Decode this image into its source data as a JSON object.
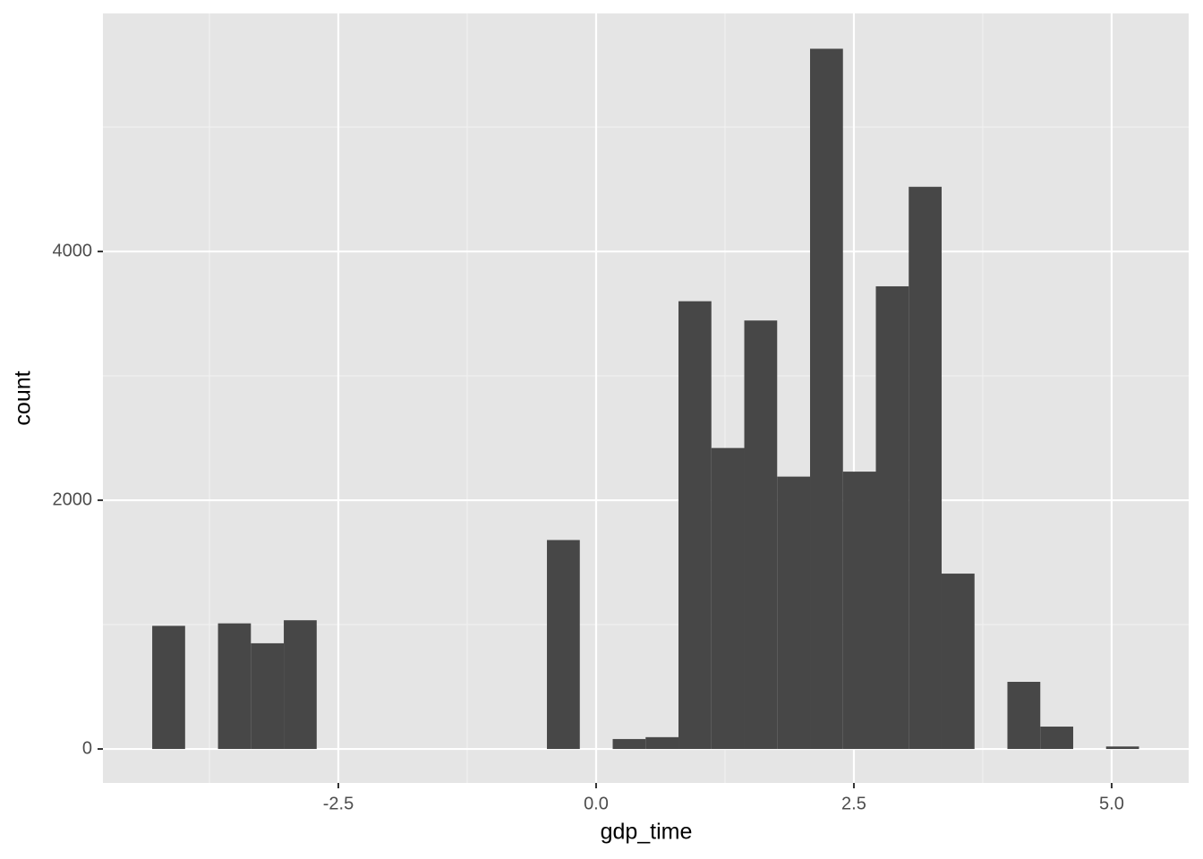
{
  "chart_data": {
    "type": "histogram",
    "x_label": "gdp_time",
    "y_label": "count",
    "bins": [
      -4.305,
      -3.986,
      -3.667,
      -3.348,
      -3.029,
      -2.71,
      -2.391,
      -2.072,
      -1.753,
      -1.434,
      -1.115,
      -0.796,
      -0.477,
      -0.158,
      0.161,
      0.48,
      0.799,
      1.118,
      1.437,
      1.756,
      2.075,
      2.394,
      2.713,
      3.032,
      3.351,
      3.67,
      3.989,
      4.308,
      4.627,
      4.946,
      5.265
    ],
    "values": [
      990,
      0,
      1010,
      850,
      1035,
      0,
      0,
      0,
      0,
      0,
      0,
      0,
      1680,
      0,
      80,
      95,
      3600,
      2420,
      3445,
      2190,
      5630,
      2230,
      3720,
      4520,
      1410,
      0,
      540,
      180,
      0,
      20
    ],
    "color": "#474747",
    "xlim": [
      -4.783,
      5.747
    ],
    "ylim": [
      -273,
      5914
    ],
    "xticks": [
      -2.5,
      {
        "value": 0,
        "label": "0.0"
      },
      2.5,
      {
        "value": 5,
        "label": "5.0"
      }
    ],
    "yticks": [
      0,
      2000,
      4000
    ],
    "minor_xticks": [
      -3.75,
      -1.25,
      1.25,
      3.75
    ],
    "minor_yticks": [
      1000,
      3000,
      5000
    ],
    "grid": true
  }
}
